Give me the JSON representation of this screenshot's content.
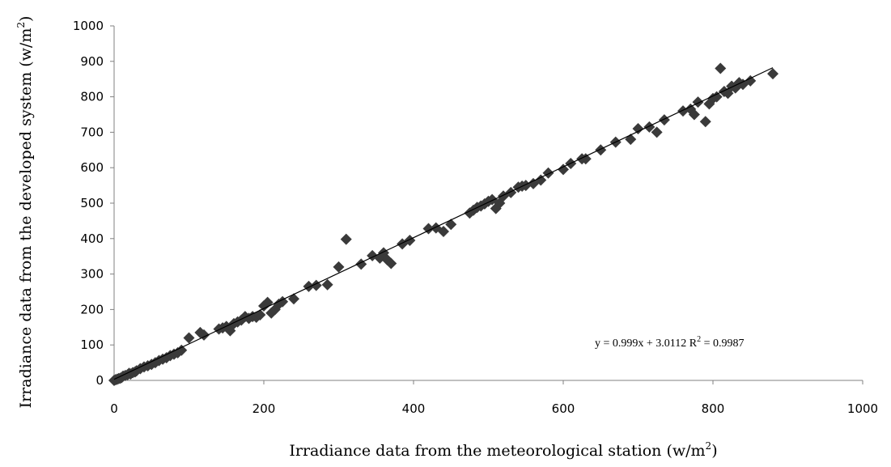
{
  "chart_data": {
    "type": "scatter",
    "title": "",
    "xlabel": "Irradiance data from the meteorological station (w/m",
    "xlabel_sup": "2",
    "xlabel_tail": ")",
    "ylabel": "Irradiance data from the developed system (w/m",
    "ylabel_sup": "2",
    "ylabel_tail": ")",
    "xlim": [
      0,
      1000
    ],
    "ylim": [
      0,
      1000
    ],
    "x_ticks": [
      "0",
      "200",
      "400",
      "600",
      "800",
      "1000"
    ],
    "y_ticks": [
      "0",
      "100",
      "200",
      "300",
      "400",
      "500",
      "600",
      "700",
      "800",
      "900",
      "1000"
    ],
    "grid": false,
    "marker": "diamond",
    "marker_color": "#3a3a3a",
    "trendline": {
      "type": "linear",
      "slope": 0.999,
      "intercept": 3.0112,
      "x_range": [
        0,
        880
      ],
      "color": "#000000"
    },
    "equation": {
      "part1": "y = 0.999x + 3.0112 R",
      "sup": "2",
      "part2": " = 0.9987"
    },
    "points": [
      [
        0,
        0
      ],
      [
        2,
        2
      ],
      [
        4,
        3
      ],
      [
        6,
        5
      ],
      [
        8,
        6
      ],
      [
        10,
        8
      ],
      [
        12,
        12
      ],
      [
        15,
        14
      ],
      [
        18,
        16
      ],
      [
        20,
        20
      ],
      [
        22,
        18
      ],
      [
        25,
        22
      ],
      [
        28,
        24
      ],
      [
        30,
        27
      ],
      [
        35,
        33
      ],
      [
        40,
        38
      ],
      [
        45,
        41
      ],
      [
        50,
        45
      ],
      [
        55,
        50
      ],
      [
        60,
        56
      ],
      [
        65,
        60
      ],
      [
        70,
        64
      ],
      [
        75,
        70
      ],
      [
        80,
        74
      ],
      [
        85,
        78
      ],
      [
        90,
        85
      ],
      [
        100,
        120
      ],
      [
        115,
        135
      ],
      [
        120,
        128
      ],
      [
        140,
        145
      ],
      [
        145,
        148
      ],
      [
        150,
        152
      ],
      [
        155,
        140
      ],
      [
        160,
        160
      ],
      [
        165,
        165
      ],
      [
        170,
        170
      ],
      [
        175,
        180
      ],
      [
        180,
        175
      ],
      [
        185,
        180
      ],
      [
        190,
        178
      ],
      [
        195,
        185
      ],
      [
        200,
        210
      ],
      [
        205,
        220
      ],
      [
        210,
        190
      ],
      [
        215,
        200
      ],
      [
        220,
        215
      ],
      [
        225,
        222
      ],
      [
        240,
        230
      ],
      [
        260,
        265
      ],
      [
        270,
        268
      ],
      [
        285,
        270
      ],
      [
        300,
        320
      ],
      [
        310,
        398
      ],
      [
        330,
        328
      ],
      [
        345,
        352
      ],
      [
        355,
        345
      ],
      [
        360,
        360
      ],
      [
        365,
        340
      ],
      [
        370,
        330
      ],
      [
        385,
        385
      ],
      [
        395,
        395
      ],
      [
        420,
        428
      ],
      [
        430,
        430
      ],
      [
        440,
        420
      ],
      [
        450,
        440
      ],
      [
        475,
        472
      ],
      [
        480,
        480
      ],
      [
        485,
        488
      ],
      [
        490,
        492
      ],
      [
        495,
        498
      ],
      [
        500,
        505
      ],
      [
        505,
        510
      ],
      [
        510,
        485
      ],
      [
        515,
        500
      ],
      [
        520,
        520
      ],
      [
        530,
        530
      ],
      [
        540,
        545
      ],
      [
        545,
        548
      ],
      [
        550,
        550
      ],
      [
        560,
        555
      ],
      [
        570,
        565
      ],
      [
        580,
        585
      ],
      [
        600,
        595
      ],
      [
        610,
        612
      ],
      [
        625,
        625
      ],
      [
        630,
        625
      ],
      [
        650,
        650
      ],
      [
        670,
        672
      ],
      [
        690,
        680
      ],
      [
        700,
        710
      ],
      [
        715,
        715
      ],
      [
        725,
        700
      ],
      [
        735,
        735
      ],
      [
        760,
        760
      ],
      [
        770,
        765
      ],
      [
        775,
        750
      ],
      [
        780,
        785
      ],
      [
        790,
        730
      ],
      [
        795,
        780
      ],
      [
        800,
        795
      ],
      [
        805,
        800
      ],
      [
        810,
        880
      ],
      [
        815,
        815
      ],
      [
        820,
        810
      ],
      [
        825,
        830
      ],
      [
        830,
        825
      ],
      [
        835,
        840
      ],
      [
        840,
        835
      ],
      [
        850,
        845
      ],
      [
        880,
        865
      ]
    ]
  }
}
